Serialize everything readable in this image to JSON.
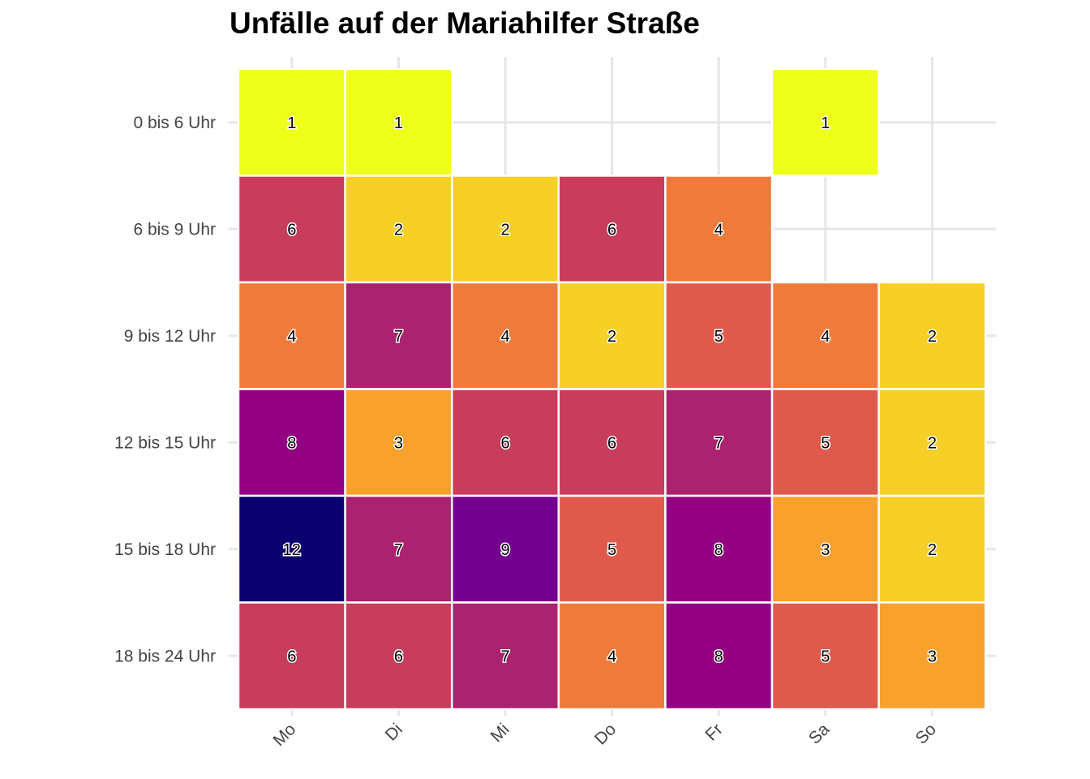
{
  "chart_data": {
    "type": "heatmap",
    "title": "Unfälle auf der Mariahilfer Straße",
    "xlabel": "",
    "ylabel": "",
    "x_categories": [
      "Mo",
      "Di",
      "Mi",
      "Do",
      "Fr",
      "Sa",
      "So"
    ],
    "y_categories": [
      "0 bis 6 Uhr",
      "6 bis 9 Uhr",
      "9 bis 12 Uhr",
      "12 bis 15 Uhr",
      "15 bis 18 Uhr",
      "18 bis 24 Uhr"
    ],
    "values": [
      [
        1,
        1,
        null,
        null,
        null,
        1,
        null
      ],
      [
        6,
        2,
        2,
        6,
        4,
        null,
        null
      ],
      [
        4,
        7,
        4,
        2,
        5,
        4,
        2
      ],
      [
        8,
        3,
        6,
        6,
        7,
        5,
        2
      ],
      [
        12,
        7,
        9,
        5,
        8,
        3,
        2
      ],
      [
        6,
        6,
        7,
        4,
        8,
        5,
        3
      ]
    ],
    "color_scale": "plasma (reversed)",
    "color_map": {
      "1": "#EEFF1A",
      "2": "#F6CF27",
      "3": "#F8A12C",
      "4": "#EE7B3C",
      "5": "#DF5A4D",
      "6": "#C83C5C",
      "7": "#AB226F",
      "8": "#930081",
      "9": "#73008E",
      "12": "#0A006F"
    },
    "grid": true,
    "legend": "none"
  }
}
